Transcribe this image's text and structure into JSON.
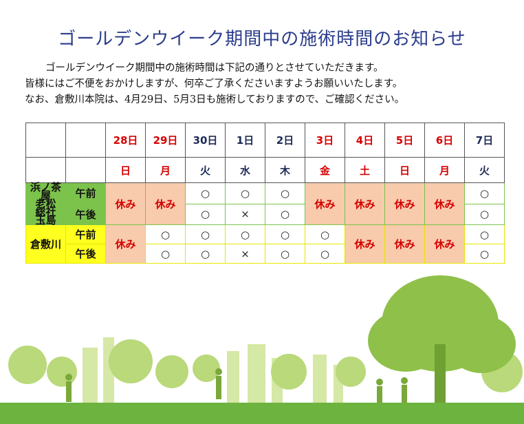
{
  "title": "ゴールデンウイーク期間中の施術時間のお知らせ",
  "intro": [
    "ゴールデンウイーク期間中の施術時間は下記の通りとさせていただきます。",
    "皆様にはご不便をおかけしますが、何卒ご了承くださいますようお願いいたします。",
    "なお、倉敷川本院は、4月29日、5月3日も施術しておりますので、ご確認ください。"
  ],
  "days": [
    {
      "date": "28日",
      "dow": "日",
      "holiday": true
    },
    {
      "date": "29日",
      "dow": "月",
      "holiday": true
    },
    {
      "date": "30日",
      "dow": "火",
      "holiday": false
    },
    {
      "date": "1日",
      "dow": "水",
      "holiday": false
    },
    {
      "date": "2日",
      "dow": "木",
      "holiday": false
    },
    {
      "date": "3日",
      "dow": "金",
      "holiday": true
    },
    {
      "date": "4日",
      "dow": "土",
      "holiday": true
    },
    {
      "date": "5日",
      "dow": "日",
      "holiday": true
    },
    {
      "date": "6日",
      "dow": "月",
      "holiday": true
    },
    {
      "date": "7日",
      "dow": "火",
      "holiday": false
    }
  ],
  "locations": [
    {
      "name_lines": [
        "浜ノ茶屋",
        "老松",
        "総社",
        "玉島"
      ],
      "am": "午前",
      "pm": "午後"
    },
    {
      "name_lines": [
        "倉敷川"
      ],
      "am": "午前",
      "pm": "午後"
    }
  ],
  "marks": {
    "open": "○",
    "cross": "×",
    "closed": "休み"
  },
  "colors": {
    "title": "#2c3d8c",
    "holiday_text": "#d60000",
    "closed_bg": "#f8cbad",
    "group1": "#7cc34c",
    "group2": "#ffff20"
  }
}
